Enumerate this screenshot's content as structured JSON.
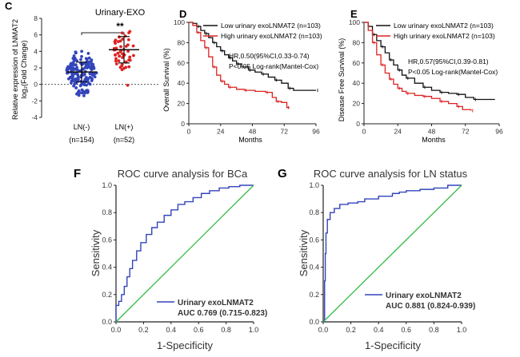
{
  "panels": {
    "c": {
      "letter": "C",
      "title": "Urinary-EXO",
      "significance": "**",
      "ylabel_line1": "Relative expression of LNMAT2",
      "ylabel_line2": "log₂(Fold Change)",
      "group_labels": [
        "LN(-)",
        "LN(+)"
      ],
      "group_ns": [
        "(n=154)",
        "(n=52)"
      ]
    },
    "d": {
      "letter": "D",
      "legend": [
        "Low urinary exoLNMAT2 (n=103)",
        "High urinary exoLNMAT2 (n=103)"
      ],
      "stats_line1": "HR,0.50(95%CI,0.33-0.74)",
      "stats_line2": "P<0.05 Log-rank(Mantel-Cox)",
      "xlabel": "Months",
      "ylabel": "Overall Survival (%)"
    },
    "e": {
      "letter": "E",
      "legend": [
        "Low urinary exoLNMAT2 (n=103)",
        "High urinary exoLNMAT2 (n=103)"
      ],
      "stats_line1": "HR,0.57(95%CI,0.39-0.81)",
      "stats_line2": "P<0.05 Log-rank(Mantel-Cox)",
      "xlabel": "Months",
      "ylabel": "Disease Free Survival (%)"
    },
    "f": {
      "letter": "F",
      "title": "ROC curve analysis for BCa",
      "xlabel": "1-Specificity",
      "ylabel": "Sensitivity",
      "legend_line1": "Urinary exoLNMAT2",
      "legend_line2": "AUC 0.769 (0.715-0.823)"
    },
    "g": {
      "letter": "G",
      "title": "ROC curve analysis for LN status",
      "xlabel": "1-Specificity",
      "ylabel": "Sensitivity",
      "legend_line1": "Urinary exoLNMAT2",
      "legend_line2": "AUC 0.881 (0.824-0.939)"
    }
  },
  "colors": {
    "blue": "#3344bb",
    "red": "#dd2222",
    "black": "#111111",
    "green": "#33bb44",
    "grey": "#888888"
  },
  "chart_data": [
    {
      "id": "C",
      "type": "scatter",
      "title": "Urinary-EXO",
      "ylabel": "Relative expression of LNMAT2 log2(Fold Change)",
      "categories": [
        "LN(-)",
        "LN(+)"
      ],
      "ylim": [
        -4,
        8
      ],
      "yticks": [
        -4,
        -2,
        0,
        2,
        4,
        6,
        8
      ],
      "series": [
        {
          "category": "LN(-)",
          "n": 154,
          "mean": 1.5,
          "sd": 1.2,
          "color": "#3344bb"
        },
        {
          "category": "LN(+)",
          "n": 52,
          "mean": 4.2,
          "sd": 1.6,
          "color": "#dd2222"
        }
      ]
    },
    {
      "id": "D",
      "type": "line",
      "xlabel": "Months",
      "ylabel": "Overall Survival (%)",
      "xlim": [
        0,
        96
      ],
      "ylim": [
        0,
        100
      ],
      "xticks": [
        0,
        24,
        48,
        72,
        96
      ],
      "yticks": [
        0,
        20,
        40,
        60,
        80,
        100
      ],
      "series": [
        {
          "name": "Low urinary exoLNMAT2 (n=103)",
          "color": "#111111",
          "points": [
            [
              0,
              100
            ],
            [
              3,
              99
            ],
            [
              6,
              96
            ],
            [
              9,
              92
            ],
            [
              12,
              89
            ],
            [
              15,
              85
            ],
            [
              18,
              80
            ],
            [
              21,
              76
            ],
            [
              24,
              72
            ],
            [
              27,
              68
            ],
            [
              30,
              65
            ],
            [
              33,
              62
            ],
            [
              36,
              59
            ],
            [
              40,
              56
            ],
            [
              45,
              53
            ],
            [
              50,
              51
            ],
            [
              55,
              49
            ],
            [
              60,
              46
            ],
            [
              65,
              43
            ],
            [
              70,
              40
            ],
            [
              75,
              35
            ],
            [
              79,
              33
            ],
            [
              96,
              33
            ]
          ]
        },
        {
          "name": "High urinary exoLNMAT2 (n=103)",
          "color": "#dd2222",
          "points": [
            [
              0,
              100
            ],
            [
              3,
              97
            ],
            [
              6,
              90
            ],
            [
              9,
              82
            ],
            [
              12,
              75
            ],
            [
              15,
              66
            ],
            [
              18,
              56
            ],
            [
              21,
              48
            ],
            [
              24,
              42
            ],
            [
              27,
              39
            ],
            [
              30,
              36
            ],
            [
              36,
              34
            ],
            [
              42,
              33
            ],
            [
              50,
              32
            ],
            [
              58,
              31
            ],
            [
              63,
              26
            ],
            [
              66,
              22
            ],
            [
              70,
              21
            ],
            [
              74,
              16
            ],
            [
              76,
              16
            ]
          ]
        }
      ]
    },
    {
      "id": "E",
      "type": "line",
      "xlabel": "Months",
      "ylabel": "Disease Free Survival (%)",
      "xlim": [
        0,
        96
      ],
      "ylim": [
        0,
        100
      ],
      "xticks": [
        0,
        24,
        48,
        72,
        96
      ],
      "yticks": [
        0,
        20,
        40,
        60,
        80,
        100
      ],
      "series": [
        {
          "name": "Low urinary exoLNMAT2 (n=103)",
          "color": "#111111",
          "points": [
            [
              0,
              100
            ],
            [
              3,
              96
            ],
            [
              6,
              88
            ],
            [
              9,
              82
            ],
            [
              12,
              76
            ],
            [
              15,
              70
            ],
            [
              18,
              63
            ],
            [
              21,
              58
            ],
            [
              24,
              53
            ],
            [
              27,
              48
            ],
            [
              30,
              45
            ],
            [
              36,
              40
            ],
            [
              42,
              36
            ],
            [
              48,
              33
            ],
            [
              54,
              31
            ],
            [
              60,
              30
            ],
            [
              66,
              29
            ],
            [
              72,
              26
            ],
            [
              78,
              24
            ],
            [
              93,
              24
            ]
          ]
        },
        {
          "name": "High urinary exoLNMAT2 (n=103)",
          "color": "#dd2222",
          "points": [
            [
              0,
              100
            ],
            [
              3,
              92
            ],
            [
              6,
              80
            ],
            [
              9,
              68
            ],
            [
              12,
              58
            ],
            [
              15,
              50
            ],
            [
              18,
              44
            ],
            [
              21,
              39
            ],
            [
              24,
              35
            ],
            [
              27,
              32
            ],
            [
              30,
              30
            ],
            [
              36,
              28
            ],
            [
              42,
              27
            ],
            [
              48,
              25
            ],
            [
              54,
              22
            ],
            [
              60,
              20
            ],
            [
              66,
              17
            ],
            [
              70,
              14
            ],
            [
              76,
              13
            ]
          ]
        }
      ]
    },
    {
      "id": "F",
      "type": "line",
      "title": "ROC curve analysis for BCa",
      "xlabel": "1-Specificity",
      "ylabel": "Sensitivity",
      "xlim": [
        0,
        1
      ],
      "ylim": [
        0,
        1
      ],
      "xticks": [
        0,
        0.2,
        0.4,
        0.6,
        0.8,
        1.0
      ],
      "yticks": [
        0,
        0.2,
        0.4,
        0.6,
        0.8,
        1.0
      ],
      "legend": "Urinary exoLNMAT2",
      "auc": "AUC 0.769 (0.715-0.823)",
      "series": [
        {
          "name": "Urinary exoLNMAT2",
          "color": "#3344bb",
          "points": [
            [
              0,
              0
            ],
            [
              0,
              0.12
            ],
            [
              0.02,
              0.15
            ],
            [
              0.04,
              0.2
            ],
            [
              0.06,
              0.26
            ],
            [
              0.08,
              0.33
            ],
            [
              0.1,
              0.39
            ],
            [
              0.12,
              0.45
            ],
            [
              0.15,
              0.52
            ],
            [
              0.18,
              0.58
            ],
            [
              0.22,
              0.64
            ],
            [
              0.26,
              0.69
            ],
            [
              0.3,
              0.73
            ],
            [
              0.35,
              0.78
            ],
            [
              0.4,
              0.82
            ],
            [
              0.45,
              0.86
            ],
            [
              0.5,
              0.88
            ],
            [
              0.56,
              0.91
            ],
            [
              0.62,
              0.94
            ],
            [
              0.68,
              0.96
            ],
            [
              0.75,
              0.98
            ],
            [
              0.82,
              0.99
            ],
            [
              0.9,
              1.0
            ],
            [
              1.0,
              1.0
            ]
          ]
        },
        {
          "name": "reference",
          "color": "#33bb44",
          "points": [
            [
              0,
              0
            ],
            [
              1,
              1
            ]
          ]
        }
      ]
    },
    {
      "id": "G",
      "type": "line",
      "title": "ROC curve analysis for LN status",
      "xlabel": "1-Specificity",
      "ylabel": "Sensitivity",
      "xlim": [
        0,
        1
      ],
      "ylim": [
        0,
        1
      ],
      "xticks": [
        0,
        0.2,
        0.4,
        0.6,
        0.8,
        1.0
      ],
      "yticks": [
        0,
        0.2,
        0.4,
        0.6,
        0.8,
        1.0
      ],
      "legend": "Urinary exoLNMAT2",
      "auc": "AUC 0.881 (0.824-0.939)",
      "series": [
        {
          "name": "Urinary exoLNMAT2",
          "color": "#3344bb",
          "points": [
            [
              0,
              0
            ],
            [
              0.01,
              0.3
            ],
            [
              0.015,
              0.5
            ],
            [
              0.02,
              0.65
            ],
            [
              0.03,
              0.75
            ],
            [
              0.05,
              0.8
            ],
            [
              0.08,
              0.83
            ],
            [
              0.12,
              0.86
            ],
            [
              0.18,
              0.87
            ],
            [
              0.25,
              0.88
            ],
            [
              0.3,
              0.9
            ],
            [
              0.4,
              0.92
            ],
            [
              0.5,
              0.94
            ],
            [
              0.55,
              0.95
            ],
            [
              0.6,
              0.96
            ],
            [
              0.7,
              0.97
            ],
            [
              0.8,
              0.98
            ],
            [
              0.9,
              1.0
            ],
            [
              1.0,
              1.0
            ]
          ]
        },
        {
          "name": "reference",
          "color": "#33bb44",
          "points": [
            [
              0,
              0
            ],
            [
              1,
              1
            ]
          ]
        }
      ]
    }
  ]
}
